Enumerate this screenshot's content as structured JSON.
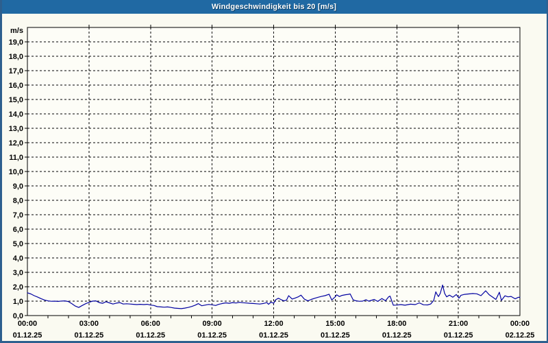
{
  "window": {
    "title": "Windgeschwindigkeit bis 20 [m/s]"
  },
  "colors": {
    "titlebar_bg": "#2069a3",
    "title_text": "#ffffff",
    "title_shadow": "#0d3c61",
    "frame_border": "#2d5f8e",
    "page_bg": "#fafaf1",
    "plot_bg": "#fdfdf7",
    "grid": "#000000",
    "axis": "#000000",
    "label_text": "#000000",
    "line": "#0000a0"
  },
  "chart_data": {
    "type": "line",
    "title": "Windgeschwindigkeit bis 20 [m/s]",
    "unit_label": "m/s",
    "ylabel": "m/s",
    "ylim": [
      0,
      20
    ],
    "ytick_step": 1,
    "ytick_labels": [
      "0,0",
      "1,0",
      "2,0",
      "3,0",
      "4,0",
      "5,0",
      "6,0",
      "7,0",
      "8,0",
      "9,0",
      "10,0",
      "11,0",
      "12,0",
      "13,0",
      "14,0",
      "15,0",
      "16,0",
      "17,0",
      "18,0",
      "19,0"
    ],
    "grid": "dashed",
    "legend_position": "none",
    "x_axis": {
      "span_hours": 24,
      "major_tick_hours": 3,
      "minor_tick_hours": 1,
      "start_label": {
        "time": "00:00",
        "date": "01.12.25"
      },
      "end_label": {
        "time": "00:00",
        "date": "02.12.25"
      }
    },
    "xtick_labels": [
      {
        "hour": 0,
        "time": "00:00",
        "date": "01.12.25"
      },
      {
        "hour": 3,
        "time": "03:00",
        "date": "01.12.25"
      },
      {
        "hour": 6,
        "time": "06:00",
        "date": "01.12.25"
      },
      {
        "hour": 9,
        "time": "09:00",
        "date": "01.12.25"
      },
      {
        "hour": 12,
        "time": "12:00",
        "date": "01.12.25"
      },
      {
        "hour": 15,
        "time": "15:00",
        "date": "01.12.25"
      },
      {
        "hour": 18,
        "time": "18:00",
        "date": "01.12.25"
      },
      {
        "hour": 21,
        "time": "21:00",
        "date": "01.12.25"
      },
      {
        "hour": 24,
        "time": "00:00",
        "date": "02.12.25"
      }
    ],
    "series": [
      {
        "name": "Windgeschwindigkeit",
        "unit": "m/s",
        "color": "#0000a0",
        "points": [
          [
            0.0,
            1.58
          ],
          [
            0.17,
            1.5
          ],
          [
            0.33,
            1.38
          ],
          [
            0.5,
            1.28
          ],
          [
            0.67,
            1.17
          ],
          [
            0.83,
            1.08
          ],
          [
            1.0,
            1.02
          ],
          [
            1.17,
            0.99
          ],
          [
            1.33,
            1.0
          ],
          [
            1.5,
            0.98
          ],
          [
            1.67,
            1.01
          ],
          [
            1.83,
            1.02
          ],
          [
            2.0,
            0.97
          ],
          [
            2.17,
            0.82
          ],
          [
            2.33,
            0.66
          ],
          [
            2.5,
            0.56
          ],
          [
            2.67,
            0.7
          ],
          [
            2.83,
            0.82
          ],
          [
            3.0,
            0.92
          ],
          [
            3.17,
            1.0
          ],
          [
            3.33,
            1.02
          ],
          [
            3.5,
            0.9
          ],
          [
            3.67,
            0.85
          ],
          [
            3.83,
            0.96
          ],
          [
            4.0,
            0.88
          ],
          [
            4.17,
            0.8
          ],
          [
            4.33,
            0.86
          ],
          [
            4.5,
            0.9
          ],
          [
            4.67,
            0.8
          ],
          [
            4.83,
            0.82
          ],
          [
            5.0,
            0.8
          ],
          [
            5.17,
            0.78
          ],
          [
            5.33,
            0.76
          ],
          [
            5.5,
            0.78
          ],
          [
            5.67,
            0.76
          ],
          [
            5.83,
            0.78
          ],
          [
            6.0,
            0.73
          ],
          [
            6.17,
            0.7
          ],
          [
            6.33,
            0.62
          ],
          [
            6.5,
            0.6
          ],
          [
            6.67,
            0.58
          ],
          [
            6.83,
            0.6
          ],
          [
            7.0,
            0.56
          ],
          [
            7.17,
            0.52
          ],
          [
            7.33,
            0.5
          ],
          [
            7.5,
            0.48
          ],
          [
            7.67,
            0.52
          ],
          [
            7.83,
            0.56
          ],
          [
            8.0,
            0.63
          ],
          [
            8.17,
            0.72
          ],
          [
            8.33,
            0.83
          ],
          [
            8.5,
            0.68
          ],
          [
            8.67,
            0.73
          ],
          [
            8.83,
            0.77
          ],
          [
            9.0,
            0.75
          ],
          [
            9.17,
            0.7
          ],
          [
            9.33,
            0.78
          ],
          [
            9.5,
            0.84
          ],
          [
            9.67,
            0.88
          ],
          [
            9.83,
            0.85
          ],
          [
            10.0,
            0.9
          ],
          [
            10.17,
            0.87
          ],
          [
            10.33,
            0.92
          ],
          [
            10.5,
            0.89
          ],
          [
            10.67,
            0.87
          ],
          [
            10.83,
            0.85
          ],
          [
            11.0,
            0.84
          ],
          [
            11.17,
            0.82
          ],
          [
            11.33,
            0.8
          ],
          [
            11.5,
            0.84
          ],
          [
            11.67,
            0.9
          ],
          [
            11.75,
            0.78
          ],
          [
            11.87,
            0.93
          ],
          [
            12.0,
            0.85
          ],
          [
            12.1,
            1.1
          ],
          [
            12.23,
            1.2
          ],
          [
            12.37,
            1.1
          ],
          [
            12.5,
            1.02
          ],
          [
            12.63,
            1.08
          ],
          [
            12.73,
            1.38
          ],
          [
            12.9,
            1.15
          ],
          [
            13.05,
            1.22
          ],
          [
            13.2,
            1.3
          ],
          [
            13.33,
            1.42
          ],
          [
            13.5,
            1.14
          ],
          [
            13.67,
            1.02
          ],
          [
            13.83,
            1.12
          ],
          [
            14.0,
            1.2
          ],
          [
            14.17,
            1.27
          ],
          [
            14.33,
            1.33
          ],
          [
            14.5,
            1.38
          ],
          [
            14.7,
            1.48
          ],
          [
            14.83,
            1.08
          ],
          [
            15.0,
            1.3
          ],
          [
            15.07,
            1.44
          ],
          [
            15.2,
            1.32
          ],
          [
            15.33,
            1.4
          ],
          [
            15.5,
            1.45
          ],
          [
            15.63,
            1.47
          ],
          [
            15.73,
            1.5
          ],
          [
            15.87,
            1.1
          ],
          [
            16.0,
            1.03
          ],
          [
            16.17,
            0.99
          ],
          [
            16.33,
            1.0
          ],
          [
            16.5,
            1.1
          ],
          [
            16.63,
            1.0
          ],
          [
            16.9,
            1.12
          ],
          [
            17.07,
            0.98
          ],
          [
            17.27,
            1.18
          ],
          [
            17.45,
            1.03
          ],
          [
            17.6,
            1.3
          ],
          [
            17.67,
            1.35
          ],
          [
            17.83,
            0.72
          ],
          [
            18.0,
            0.73
          ],
          [
            18.2,
            0.76
          ],
          [
            18.4,
            0.72
          ],
          [
            18.67,
            0.79
          ],
          [
            18.9,
            0.76
          ],
          [
            19.1,
            0.88
          ],
          [
            19.3,
            0.75
          ],
          [
            19.5,
            0.74
          ],
          [
            19.65,
            0.8
          ],
          [
            19.8,
            1.05
          ],
          [
            19.9,
            1.65
          ],
          [
            19.97,
            1.45
          ],
          [
            20.03,
            1.32
          ],
          [
            20.12,
            1.55
          ],
          [
            20.23,
            2.12
          ],
          [
            20.33,
            1.54
          ],
          [
            20.43,
            1.3
          ],
          [
            20.57,
            1.42
          ],
          [
            20.73,
            1.27
          ],
          [
            20.9,
            1.46
          ],
          [
            21.03,
            1.21
          ],
          [
            21.13,
            1.41
          ],
          [
            21.3,
            1.47
          ],
          [
            21.5,
            1.5
          ],
          [
            21.7,
            1.53
          ],
          [
            21.9,
            1.51
          ],
          [
            22.1,
            1.38
          ],
          [
            22.33,
            1.72
          ],
          [
            22.5,
            1.45
          ],
          [
            22.67,
            1.28
          ],
          [
            22.83,
            1.12
          ],
          [
            23.0,
            1.62
          ],
          [
            23.1,
            1.05
          ],
          [
            23.27,
            1.37
          ],
          [
            23.42,
            1.3
          ],
          [
            23.57,
            1.33
          ],
          [
            23.77,
            1.16
          ],
          [
            23.93,
            1.27
          ],
          [
            24.0,
            1.26
          ]
        ]
      }
    ]
  }
}
